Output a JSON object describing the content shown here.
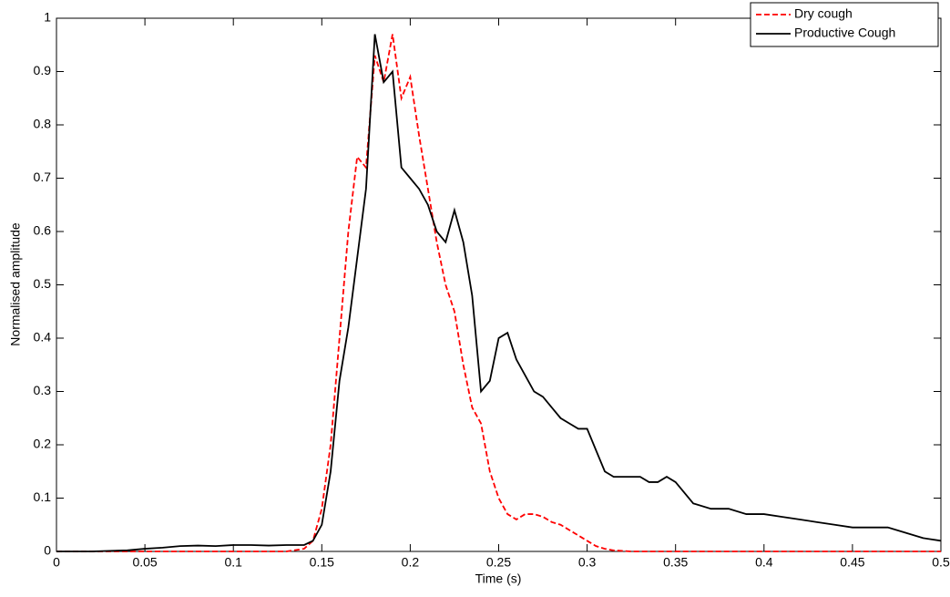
{
  "chart_data": {
    "type": "line",
    "xlabel": "Time (s)",
    "ylabel": "Normalised amplitude",
    "x": [
      0,
      0.02,
      0.04,
      0.05,
      0.06,
      0.07,
      0.08,
      0.09,
      0.1,
      0.11,
      0.12,
      0.13,
      0.14,
      0.145,
      0.15,
      0.155,
      0.16,
      0.165,
      0.17,
      0.175,
      0.18,
      0.185,
      0.19,
      0.195,
      0.2,
      0.205,
      0.21,
      0.215,
      0.22,
      0.225,
      0.23,
      0.235,
      0.24,
      0.245,
      0.25,
      0.255,
      0.26,
      0.265,
      0.27,
      0.275,
      0.28,
      0.285,
      0.29,
      0.295,
      0.3,
      0.305,
      0.31,
      0.315,
      0.32,
      0.325,
      0.33,
      0.335,
      0.34,
      0.345,
      0.35,
      0.36,
      0.37,
      0.38,
      0.39,
      0.4,
      0.41,
      0.42,
      0.43,
      0.44,
      0.45,
      0.46,
      0.47,
      0.48,
      0.49,
      0.5
    ],
    "series": [
      {
        "name": "Dry cough",
        "color": "#ff0000",
        "dash": true,
        "values": [
          0,
          0,
          0,
          0,
          0,
          0,
          0,
          0,
          0,
          0,
          0,
          0,
          0.005,
          0.02,
          0.08,
          0.2,
          0.4,
          0.6,
          0.74,
          0.72,
          0.93,
          0.88,
          0.97,
          0.85,
          0.89,
          0.78,
          0.68,
          0.58,
          0.5,
          0.45,
          0.35,
          0.27,
          0.24,
          0.15,
          0.1,
          0.07,
          0.06,
          0.07,
          0.07,
          0.065,
          0.055,
          0.05,
          0.04,
          0.03,
          0.02,
          0.01,
          0.005,
          0.002,
          0.001,
          0,
          0,
          0,
          0,
          0,
          0,
          0,
          0,
          0,
          0,
          0,
          0,
          0,
          0,
          0,
          0,
          0,
          0,
          0,
          0,
          0
        ]
      },
      {
        "name": "Productive Cough",
        "color": "#000000",
        "dash": false,
        "values": [
          0,
          0,
          0.002,
          0.005,
          0.007,
          0.01,
          0.011,
          0.01,
          0.012,
          0.012,
          0.011,
          0.012,
          0.012,
          0.02,
          0.05,
          0.15,
          0.32,
          0.42,
          0.55,
          0.68,
          0.97,
          0.88,
          0.9,
          0.72,
          0.7,
          0.68,
          0.65,
          0.6,
          0.58,
          0.64,
          0.58,
          0.48,
          0.3,
          0.32,
          0.4,
          0.41,
          0.36,
          0.33,
          0.3,
          0.29,
          0.27,
          0.25,
          0.24,
          0.23,
          0.23,
          0.19,
          0.15,
          0.14,
          0.14,
          0.14,
          0.14,
          0.13,
          0.13,
          0.14,
          0.13,
          0.09,
          0.08,
          0.08,
          0.07,
          0.07,
          0.065,
          0.06,
          0.055,
          0.05,
          0.045,
          0.045,
          0.045,
          0.035,
          0.025,
          0.02
        ]
      }
    ],
    "xlim": [
      0,
      0.5
    ],
    "xticks": [
      0,
      0.05,
      0.1,
      0.15,
      0.2,
      0.25,
      0.3,
      0.35,
      0.4,
      0.45,
      0.5
    ],
    "ylim": [
      0,
      1
    ],
    "yticks": [
      0,
      0.1,
      0.2,
      0.3,
      0.4,
      0.5,
      0.6,
      0.7,
      0.8,
      0.9,
      1
    ],
    "legend": "northeast"
  }
}
